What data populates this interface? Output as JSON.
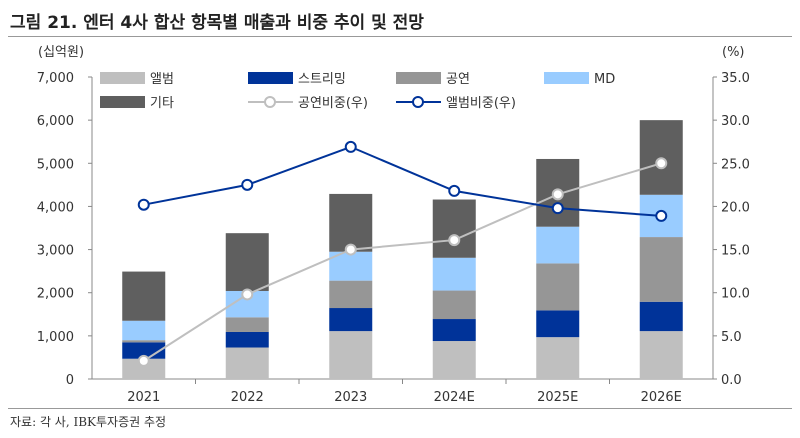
{
  "title": "그림 21. 엔터 4사 합산 항목별 매출과 비중 추이 및 전망",
  "source": "자료: 각 사, IBK투자증권 추정",
  "chart_data": {
    "type": "bar",
    "stacked": true,
    "title": "그림 21. 엔터 4사 합산 항목별 매출과 비중 추이 및 전망",
    "ylabel": "(십억원)",
    "y2label": "(%)",
    "ylim": [
      0,
      7000
    ],
    "y2lim": [
      0,
      35
    ],
    "yticks": [
      "0",
      "1,000",
      "2,000",
      "3,000",
      "4,000",
      "5,000",
      "6,000",
      "7,000"
    ],
    "y2ticks": [
      "0.0",
      "5.0",
      "10.0",
      "15.0",
      "20.0",
      "25.0",
      "30.0",
      "35.0"
    ],
    "categories": [
      "2021",
      "2022",
      "2023",
      "2024E",
      "2025E",
      "2026E"
    ],
    "legend_placement": "top",
    "series": [
      {
        "name": "앨범",
        "color": "#bfbfbf",
        "values": [
          470,
          730,
          1110,
          880,
          970,
          1110
        ]
      },
      {
        "name": "스트리밍",
        "color": "#003399",
        "values": [
          380,
          360,
          535,
          510,
          620,
          680
        ]
      },
      {
        "name": "공연",
        "color": "#969696",
        "values": [
          50,
          340,
          635,
          660,
          1090,
          1500
        ]
      },
      {
        "name": "MD",
        "color": "#99ccff",
        "values": [
          450,
          610,
          670,
          760,
          850,
          980
        ]
      },
      {
        "name": "기타",
        "color": "#5f5f5f",
        "values": [
          1140,
          1340,
          1340,
          1350,
          1570,
          1730
        ]
      }
    ],
    "line_series": [
      {
        "name": "공연비중(우)",
        "color": "#bfbfbf",
        "axis": "right",
        "values": [
          2.1,
          9.8,
          15.0,
          16.1,
          21.4,
          25.0
        ]
      },
      {
        "name": "앨범비중(우)",
        "color": "#003399",
        "axis": "right",
        "values": [
          20.2,
          22.5,
          26.9,
          21.8,
          19.8,
          18.9
        ]
      }
    ]
  }
}
